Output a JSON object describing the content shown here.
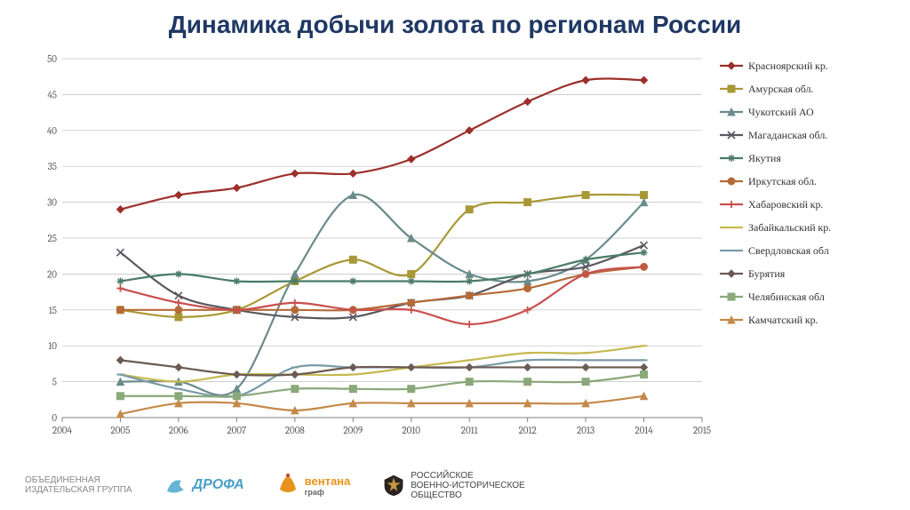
{
  "title": "Динамика добычи золота по регионам России",
  "chart": {
    "type": "line",
    "xlim": [
      2004,
      2015
    ],
    "ylim": [
      0,
      50
    ],
    "ytick_step": 5,
    "xtick_step": 1,
    "background_color": "#ffffff",
    "grid_color": "#bfbfbf",
    "grid_width": 0.7,
    "axis_fontsize": 11,
    "line_width": 2.2,
    "marker_size": 4,
    "series": [
      {
        "name": "Красноярский кр.",
        "color": "#9c2f2a",
        "marker": "diamond",
        "y": [
          29,
          31,
          32,
          34,
          34,
          36,
          40,
          44,
          47,
          47
        ]
      },
      {
        "name": "Амурская обл.",
        "color": "#a89836",
        "marker": "square",
        "y": [
          15,
          14,
          15,
          19,
          22,
          20,
          29,
          30,
          31,
          31
        ]
      },
      {
        "name": "Чукотский АО",
        "color": "#6b8a8c",
        "marker": "triangle",
        "y": [
          5,
          5,
          4,
          20,
          31,
          25,
          20,
          19,
          22,
          30
        ]
      },
      {
        "name": "Магаданская обл.",
        "color": "#5b5761",
        "marker": "x",
        "y": [
          23,
          17,
          15,
          14,
          14,
          16,
          17,
          20,
          21,
          24
        ]
      },
      {
        "name": "Якутия",
        "color": "#4a7b68",
        "marker": "star",
        "y": [
          19,
          20,
          19,
          19,
          19,
          19,
          19,
          20,
          22,
          23
        ]
      },
      {
        "name": "Иркутская обл.",
        "color": "#b56a37",
        "marker": "circle",
        "y": [
          15,
          15,
          15,
          15,
          15,
          16,
          17,
          18,
          20,
          21
        ]
      },
      {
        "name": "Хабаровский кр.",
        "color": "#c94e4e",
        "marker": "plus",
        "y": [
          18,
          16,
          15,
          16,
          15,
          15,
          13,
          15,
          20,
          21
        ]
      },
      {
        "name": "Забайкальский кр.",
        "color": "#c5b950",
        "marker": "dash",
        "y": [
          6,
          5,
          6,
          6,
          6,
          7,
          8,
          9,
          9,
          10
        ]
      },
      {
        "name": "Свердловская обл",
        "color": "#7a9aa6",
        "marker": "dash",
        "y": [
          6,
          4,
          3,
          7,
          7,
          7,
          7,
          8,
          8,
          8
        ]
      },
      {
        "name": "Бурятия",
        "color": "#6b5b52",
        "marker": "diamond",
        "y": [
          8,
          7,
          6,
          6,
          7,
          7,
          7,
          7,
          7,
          7
        ]
      },
      {
        "name": "Челябинская обл",
        "color": "#8aa87a",
        "marker": "square",
        "y": [
          3,
          3,
          3,
          4,
          4,
          4,
          5,
          5,
          5,
          6
        ]
      },
      {
        "name": "Камчатский кр.",
        "color": "#c48a4a",
        "marker": "triangle",
        "y": [
          0.5,
          2,
          2,
          1,
          2,
          2,
          2,
          2,
          2,
          3
        ]
      }
    ],
    "x_values": [
      2005,
      2006,
      2007,
      2008,
      2009,
      2010,
      2011,
      2012,
      2013,
      2014
    ]
  },
  "footer": {
    "items": [
      {
        "id": "oiz",
        "text_top": "ОБЪЕДИНЕННАЯ",
        "text_bottom": "ИЗДАТЕЛЬСКАЯ ГРУППА"
      },
      {
        "id": "drofa",
        "text": "ДРОФА"
      },
      {
        "id": "ventana",
        "text": "вентана",
        "sub": "граф"
      },
      {
        "id": "rvio",
        "text_top": "РОССИЙСКОЕ",
        "text_mid": "ВОЕННО-ИСТОРИЧЕСКОЕ",
        "text_bottom": "ОБЩЕСТВО"
      }
    ]
  }
}
